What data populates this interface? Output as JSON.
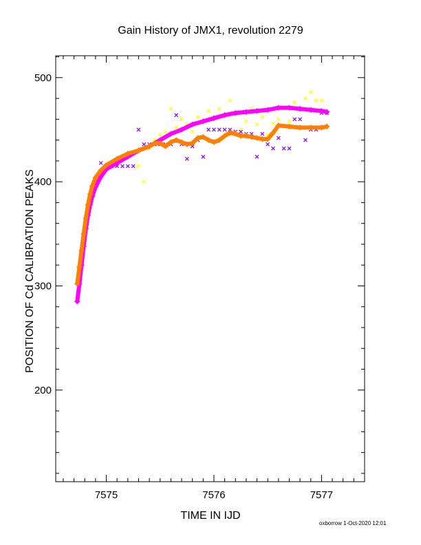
{
  "title": "Gain History of JMX1, revolution 2279",
  "footer": "oxborrow  1-Oct-2020 12:01",
  "chart_data": {
    "type": "scatter",
    "title": "Gain History of JMX1, revolution 2279",
    "xlabel": "TIME IN IJD",
    "ylabel": "POSITION OF Cd CALIBRATION PEAKS",
    "xlim": [
      7574.53,
      7577.4
    ],
    "ylim": [
      112,
      521
    ],
    "xticks": [
      7575,
      7576,
      7577
    ],
    "yticks": [
      200,
      300,
      400,
      500
    ],
    "grid": false,
    "colors": {
      "yellow": "#ffff00",
      "purple": "#8c00ff",
      "magenta": "#ff00ff",
      "orange": "#ff8000"
    },
    "series": [
      {
        "color": "yellow",
        "marker": "x",
        "x": [
          7574.73,
          7574.75,
          7574.77,
          7574.79,
          7574.81,
          7574.83,
          7574.85,
          7574.87,
          7574.9,
          7574.95,
          7575.0,
          7575.05,
          7575.1,
          7575.15,
          7575.2,
          7575.25,
          7575.3,
          7575.35,
          7575.4,
          7575.45,
          7575.5,
          7575.55,
          7575.6,
          7575.65,
          7575.7,
          7575.75,
          7575.8,
          7575.85,
          7575.9,
          7575.95,
          7576.0,
          7576.05,
          7576.1,
          7576.15,
          7576.2,
          7576.25,
          7576.3,
          7576.35,
          7576.4,
          7576.45,
          7576.5,
          7576.55,
          7576.6,
          7576.65,
          7576.7,
          7576.75,
          7576.8,
          7576.85,
          7576.9,
          7576.95,
          7577.0
        ],
        "y": [
          303,
          312,
          322,
          335,
          348,
          362,
          372,
          382,
          398,
          408,
          414,
          418,
          420,
          424,
          426,
          427,
          415,
          400,
          432,
          440,
          445,
          448,
          470,
          452,
          460,
          455,
          448,
          462,
          458,
          468,
          462,
          470,
          445,
          478,
          465,
          450,
          458,
          470,
          455,
          462,
          445,
          456,
          460,
          470,
          458,
          476,
          452,
          480,
          486,
          478,
          478
        ]
      },
      {
        "color": "purple",
        "marker": "x",
        "x": [
          7574.74,
          7574.76,
          7574.78,
          7574.8,
          7574.82,
          7574.84,
          7574.86,
          7574.9,
          7574.95,
          7575.0,
          7575.05,
          7575.1,
          7575.15,
          7575.2,
          7575.25,
          7575.3,
          7575.35,
          7575.4,
          7575.45,
          7575.5,
          7575.55,
          7575.6,
          7575.65,
          7575.7,
          7575.75,
          7575.8,
          7575.85,
          7575.9,
          7575.95,
          7576.0,
          7576.05,
          7576.1,
          7576.15,
          7576.2,
          7576.25,
          7576.3,
          7576.35,
          7576.4,
          7576.45,
          7576.5,
          7576.55,
          7576.6,
          7576.65,
          7576.7,
          7576.75,
          7576.8,
          7576.85,
          7576.9,
          7576.95,
          7577.0,
          7577.05
        ],
        "y": [
          305,
          318,
          330,
          345,
          360,
          372,
          385,
          402,
          418,
          414,
          415,
          415,
          415,
          415,
          415,
          450,
          436,
          436,
          436,
          436,
          436,
          436,
          464,
          436,
          422,
          434,
          440,
          424,
          450,
          450,
          450,
          450,
          450,
          448,
          448,
          446,
          446,
          424,
          446,
          436,
          432,
          442,
          432,
          432,
          460,
          460,
          440,
          450,
          450,
          466,
          466
        ]
      },
      {
        "color": "magenta",
        "marker": "+",
        "x": [
          7574.73,
          7574.75,
          7574.77,
          7574.79,
          7574.81,
          7574.83,
          7574.85,
          7574.87,
          7574.9,
          7574.95,
          7575.0,
          7575.1,
          7575.2,
          7575.3,
          7575.4,
          7575.5,
          7575.6,
          7575.7,
          7575.8,
          7575.9,
          7576.0,
          7576.1,
          7576.2,
          7576.3,
          7576.4,
          7576.5,
          7576.6,
          7576.7,
          7576.8,
          7576.9,
          7577.0,
          7577.05
        ],
        "y": [
          285,
          302,
          320,
          338,
          355,
          368,
          378,
          386,
          395,
          405,
          412,
          418,
          424,
          430,
          434,
          440,
          446,
          450,
          455,
          458,
          461,
          464,
          466,
          467,
          468,
          469,
          471,
          471,
          470,
          469,
          468,
          467
        ]
      },
      {
        "color": "orange",
        "marker": "+",
        "x": [
          7574.73,
          7574.75,
          7574.77,
          7574.79,
          7574.81,
          7574.83,
          7574.85,
          7574.87,
          7574.9,
          7574.95,
          7575.0,
          7575.1,
          7575.2,
          7575.3,
          7575.4,
          7575.45,
          7575.5,
          7575.55,
          7575.6,
          7575.65,
          7575.7,
          7575.75,
          7575.8,
          7575.85,
          7575.9,
          7575.95,
          7576.0,
          7576.05,
          7576.1,
          7576.15,
          7576.2,
          7576.25,
          7576.3,
          7576.35,
          7576.4,
          7576.45,
          7576.5,
          7576.55,
          7576.6,
          7576.7,
          7576.8,
          7576.9,
          7577.0,
          7577.05
        ],
        "y": [
          302,
          318,
          334,
          350,
          365,
          378,
          388,
          396,
          404,
          411,
          416,
          422,
          427,
          430,
          434,
          437,
          437,
          434,
          438,
          440,
          438,
          436,
          437,
          442,
          443,
          440,
          438,
          440,
          444,
          447,
          446,
          444,
          444,
          443,
          442,
          441,
          441,
          447,
          454,
          453,
          452,
          452,
          452,
          453
        ]
      }
    ]
  }
}
